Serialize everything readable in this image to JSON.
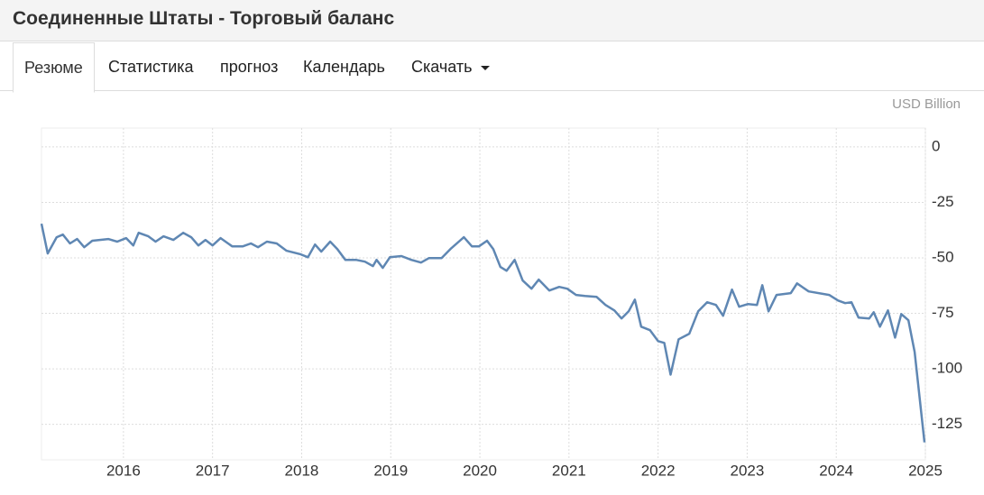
{
  "header": {
    "title": "Соединенные Штаты - Торговый баланс"
  },
  "tabs": [
    "Резюме",
    "Статистика",
    "прогноз",
    "Календарь",
    "Скачать"
  ],
  "chart_data": {
    "type": "line",
    "unit": "USD Billion",
    "color": "#5f87b3",
    "grid": true,
    "xlim": [
      2015.08,
      2025.0
    ],
    "xticks": [
      2016,
      2017,
      2018,
      2019,
      2020,
      2021,
      2022,
      2023,
      2024,
      2025
    ],
    "ylim": [
      -141,
      8.5
    ],
    "yticks": [
      0,
      -25,
      -50,
      -75,
      -100,
      -125
    ],
    "x": [
      2015.08,
      2015.15,
      2015.25,
      2015.32,
      2015.4,
      2015.48,
      2015.56,
      2015.65,
      2015.83,
      2015.93,
      2016.03,
      2016.11,
      2016.17,
      2016.28,
      2016.36,
      2016.45,
      2016.56,
      2016.67,
      2016.76,
      2016.84,
      2016.92,
      2017.0,
      2017.09,
      2017.22,
      2017.34,
      2017.43,
      2017.51,
      2017.61,
      2017.72,
      2017.83,
      2017.99,
      2018.07,
      2018.15,
      2018.22,
      2018.32,
      2018.4,
      2018.49,
      2018.61,
      2018.71,
      2018.8,
      2018.84,
      2018.91,
      2018.99,
      2019.12,
      2019.23,
      2019.34,
      2019.43,
      2019.57,
      2019.67,
      2019.82,
      2019.91,
      2019.99,
      2020.08,
      2020.15,
      2020.23,
      2020.3,
      2020.39,
      2020.48,
      2020.58,
      2020.66,
      2020.78,
      2020.89,
      2020.98,
      2021.08,
      2021.18,
      2021.31,
      2021.41,
      2021.51,
      2021.59,
      2021.67,
      2021.74,
      2021.81,
      2021.91,
      2022.0,
      2022.07,
      2022.14,
      2022.23,
      2022.35,
      2022.45,
      2022.55,
      2022.65,
      2022.73,
      2022.83,
      2022.91,
      2023.01,
      2023.11,
      2023.17,
      2023.24,
      2023.33,
      2023.49,
      2023.56,
      2023.69,
      2023.92,
      2024.02,
      2024.1,
      2024.17,
      2024.25,
      2024.37,
      2024.42,
      2024.49,
      2024.58,
      2024.66,
      2024.73,
      2024.81,
      2024.88,
      2024.99
    ],
    "values": [
      -34.6,
      -48,
      -40.7,
      -39.5,
      -43.5,
      -41.5,
      -45.2,
      -42.3,
      -41.5,
      -42.7,
      -41.1,
      -44.4,
      -38.7,
      -40.3,
      -42.7,
      -40.3,
      -41.9,
      -38.7,
      -40.7,
      -44.4,
      -41.9,
      -44.4,
      -41.1,
      -44.8,
      -44.8,
      -43.5,
      -45.2,
      -42.7,
      -43.5,
      -46.8,
      -48.4,
      -49.7,
      -44,
      -47.2,
      -42.7,
      -46,
      -50.9,
      -50.9,
      -51.7,
      -53.7,
      -50.9,
      -54.5,
      -49.7,
      -49.2,
      -50.9,
      -52.1,
      -50.1,
      -50.1,
      -46,
      -40.7,
      -44.8,
      -44.8,
      -42.3,
      -46,
      -54.1,
      -55.8,
      -50.9,
      -60.2,
      -63.9,
      -59.8,
      -64.7,
      -63.1,
      -63.9,
      -66.7,
      -67.2,
      -67.6,
      -71.2,
      -73.7,
      -77.3,
      -74.1,
      -68.8,
      -81,
      -82.6,
      -87.5,
      -88.3,
      -102.6,
      -86.7,
      -84.2,
      -74.1,
      -70,
      -71.2,
      -76.1,
      -64.3,
      -72,
      -70.8,
      -71.2,
      -62.3,
      -74.1,
      -66.7,
      -65.9,
      -61.5,
      -65.1,
      -66.7,
      -69.2,
      -70.4,
      -70,
      -76.9,
      -77.3,
      -74.5,
      -81,
      -73.7,
      -85.9,
      -75.3,
      -78.1,
      -92.4,
      -133.1
    ]
  }
}
